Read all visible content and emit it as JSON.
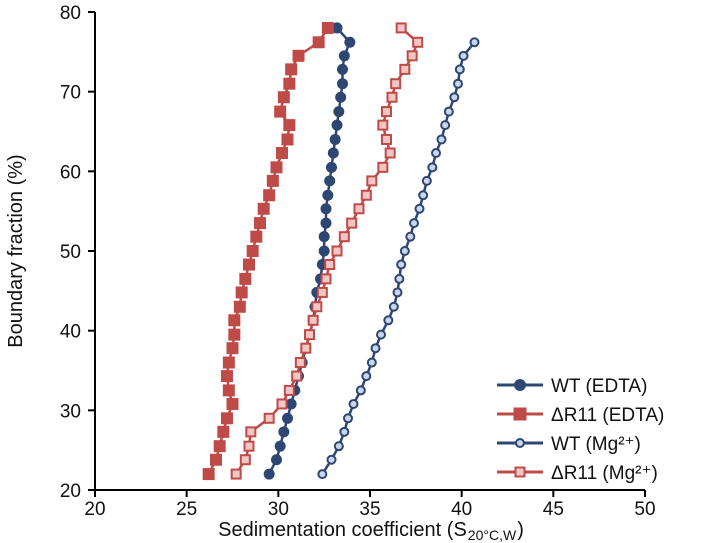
{
  "chart_data": {
    "type": "line",
    "title": "",
    "xlabel": {
      "main": "Sedimentation coefficient (S",
      "sub": "20°C,W",
      "close": ")"
    },
    "ylabel": "Boundary fraction (%)",
    "xlim": [
      20,
      50
    ],
    "ylim": [
      20,
      80
    ],
    "xticks": [
      "20",
      "25",
      "30",
      "35",
      "40",
      "45",
      "50"
    ],
    "yticks": [
      "20",
      "30",
      "40",
      "50",
      "60",
      "70",
      "80"
    ],
    "grid": false,
    "legend_position": "bottom-right",
    "series": [
      {
        "name": "WT (EDTA)",
        "color": "#2E4672",
        "marker": "filled-circle",
        "points": [
          [
            29.5,
            22
          ],
          [
            29.9,
            23.8
          ],
          [
            30.1,
            25.5
          ],
          [
            30.3,
            27.3
          ],
          [
            30.5,
            29
          ],
          [
            30.7,
            30.8
          ],
          [
            30.9,
            32.5
          ],
          [
            31.1,
            34.3
          ],
          [
            31.3,
            36
          ],
          [
            31.5,
            37.8
          ],
          [
            31.7,
            39.5
          ],
          [
            31.9,
            41.3
          ],
          [
            32.0,
            43
          ],
          [
            32.1,
            44.8
          ],
          [
            32.3,
            46.5
          ],
          [
            32.4,
            48.3
          ],
          [
            32.5,
            50
          ],
          [
            32.5,
            51.8
          ],
          [
            32.6,
            53.5
          ],
          [
            32.6,
            55.3
          ],
          [
            32.7,
            57
          ],
          [
            32.8,
            58.8
          ],
          [
            32.9,
            60.5
          ],
          [
            33.0,
            62.3
          ],
          [
            33.1,
            64
          ],
          [
            33.2,
            65.8
          ],
          [
            33.3,
            67.5
          ],
          [
            33.4,
            69.3
          ],
          [
            33.5,
            71
          ],
          [
            33.5,
            72.8
          ],
          [
            33.6,
            74.5
          ],
          [
            33.9,
            76.2
          ],
          [
            33.2,
            78
          ]
        ]
      },
      {
        "name": "ΔR11 (EDTA)",
        "color": "#BF4B48",
        "marker": "filled-square",
        "points": [
          [
            26.2,
            22
          ],
          [
            26.6,
            23.8
          ],
          [
            26.8,
            25.5
          ],
          [
            27.0,
            27.3
          ],
          [
            27.2,
            29
          ],
          [
            27.5,
            30.8
          ],
          [
            27.3,
            32.5
          ],
          [
            27.2,
            34.3
          ],
          [
            27.3,
            36
          ],
          [
            27.5,
            37.8
          ],
          [
            27.6,
            39.5
          ],
          [
            27.6,
            41.3
          ],
          [
            27.9,
            43
          ],
          [
            28.0,
            44.8
          ],
          [
            28.2,
            46.5
          ],
          [
            28.4,
            48.3
          ],
          [
            28.6,
            50
          ],
          [
            28.8,
            51.8
          ],
          [
            29.0,
            53.5
          ],
          [
            29.2,
            55.3
          ],
          [
            29.5,
            57
          ],
          [
            29.7,
            58.8
          ],
          [
            29.9,
            60.5
          ],
          [
            30.2,
            62.3
          ],
          [
            30.5,
            64
          ],
          [
            30.6,
            65.8
          ],
          [
            30.1,
            67.5
          ],
          [
            30.3,
            69.3
          ],
          [
            30.6,
            71
          ],
          [
            30.7,
            72.8
          ],
          [
            31.1,
            74.5
          ],
          [
            32.2,
            76.2
          ],
          [
            32.7,
            78
          ]
        ]
      },
      {
        "name": "WT (Mg²⁺)",
        "color": "#2E4672",
        "fill": "#C9D7EC",
        "marker": "open-circle",
        "points": [
          [
            32.4,
            22
          ],
          [
            32.9,
            23.8
          ],
          [
            33.3,
            25.5
          ],
          [
            33.6,
            27.3
          ],
          [
            33.8,
            29
          ],
          [
            34.1,
            30.8
          ],
          [
            34.5,
            32.5
          ],
          [
            34.8,
            34.3
          ],
          [
            35.1,
            36
          ],
          [
            35.3,
            37.8
          ],
          [
            35.6,
            39.5
          ],
          [
            36.0,
            41.3
          ],
          [
            36.3,
            43
          ],
          [
            36.5,
            44.8
          ],
          [
            36.6,
            46.5
          ],
          [
            36.7,
            48.3
          ],
          [
            36.9,
            50
          ],
          [
            37.2,
            51.8
          ],
          [
            37.4,
            53.5
          ],
          [
            37.7,
            55.3
          ],
          [
            37.9,
            57
          ],
          [
            38.1,
            58.8
          ],
          [
            38.4,
            60.5
          ],
          [
            38.6,
            62.3
          ],
          [
            38.9,
            64
          ],
          [
            39.1,
            65.8
          ],
          [
            39.3,
            67.5
          ],
          [
            39.6,
            69.3
          ],
          [
            39.8,
            71
          ],
          [
            39.9,
            72.8
          ],
          [
            40.1,
            74.5
          ],
          [
            40.7,
            76.2
          ]
        ]
      },
      {
        "name": "ΔR11 (Mg²⁺)",
        "color": "#BF4B48",
        "fill": "#F2C6C4",
        "marker": "open-square",
        "points": [
          [
            27.7,
            22
          ],
          [
            28.2,
            23.8
          ],
          [
            28.4,
            25.5
          ],
          [
            28.5,
            27.3
          ],
          [
            29.5,
            29
          ],
          [
            30.2,
            30.8
          ],
          [
            30.6,
            32.5
          ],
          [
            31.0,
            34.3
          ],
          [
            31.2,
            36
          ],
          [
            31.5,
            37.8
          ],
          [
            31.7,
            39.5
          ],
          [
            31.9,
            41.3
          ],
          [
            32.1,
            43
          ],
          [
            32.4,
            44.8
          ],
          [
            32.6,
            46.5
          ],
          [
            32.8,
            48.3
          ],
          [
            33.2,
            50
          ],
          [
            33.6,
            51.8
          ],
          [
            34.0,
            53.5
          ],
          [
            34.4,
            55.3
          ],
          [
            34.8,
            57
          ],
          [
            35.1,
            58.8
          ],
          [
            35.7,
            60.5
          ],
          [
            36.1,
            62.3
          ],
          [
            35.9,
            64
          ],
          [
            35.7,
            65.8
          ],
          [
            35.9,
            67.5
          ],
          [
            36.2,
            69.3
          ],
          [
            36.4,
            71
          ],
          [
            36.9,
            72.8
          ],
          [
            37.3,
            74.5
          ],
          [
            37.6,
            76.2
          ],
          [
            36.7,
            78
          ]
        ]
      }
    ]
  }
}
